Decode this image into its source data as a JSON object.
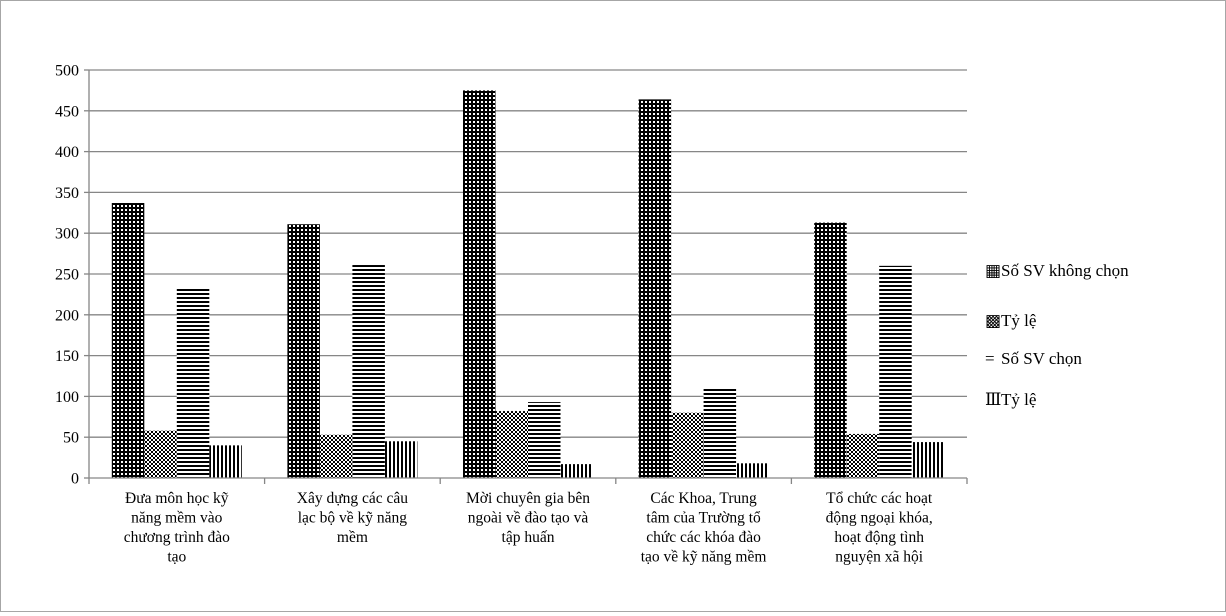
{
  "chart_data": {
    "type": "bar",
    "title": "",
    "xlabel": "",
    "ylabel": "",
    "ylim": [
      0,
      500
    ],
    "yticks": [
      0,
      50,
      100,
      150,
      200,
      250,
      300,
      350,
      400,
      450,
      500
    ],
    "grid": true,
    "legend_position": "right",
    "categories": [
      [
        "Đưa môn học kỹ",
        "năng mềm vào",
        "chương trình đào",
        "tạo"
      ],
      [
        "Xây dựng các câu",
        "lạc bộ về kỹ năng",
        "mềm"
      ],
      [
        "Mời chuyên gia bên",
        "ngoài về đào tạo và",
        "tập huấn"
      ],
      [
        "Các Khoa, Trung",
        "tâm của Trường tổ",
        "chức các khóa đào",
        "tạo về kỹ năng mềm"
      ],
      [
        "Tổ chức các hoạt",
        "động ngoại khóa,",
        "hoạt động tình",
        "nguyện xã hội"
      ]
    ],
    "series": [
      {
        "name": "Số SV không chọn",
        "pattern": "dots",
        "values": [
          337,
          311,
          475,
          464,
          313
        ]
      },
      {
        "name": "Tỷ lệ",
        "pattern": "checker",
        "values": [
          58,
          53,
          82,
          80,
          54
        ]
      },
      {
        "name": "Số SV chọn",
        "pattern": "hlines",
        "values": [
          233,
          261,
          93,
          110,
          260
        ]
      },
      {
        "name": "Tỷ lệ",
        "pattern": "vlines",
        "values": [
          40,
          45,
          17,
          18,
          44
        ]
      }
    ],
    "legend_markers": [
      "▦",
      "▩",
      "=",
      "Ⅲ"
    ]
  }
}
